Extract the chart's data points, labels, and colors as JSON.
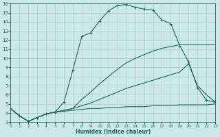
{
  "bg_color": "#cce8e8",
  "grid_color": "#aacccc",
  "line_color": "#1a6b5a",
  "xlabel": "Humidex (Indice chaleur)",
  "xlim": [
    0,
    23
  ],
  "ylim": [
    3,
    16
  ],
  "xticks": [
    0,
    1,
    2,
    3,
    4,
    5,
    6,
    7,
    8,
    9,
    10,
    11,
    12,
    13,
    14,
    15,
    16,
    17,
    18,
    19,
    20,
    21,
    22,
    23
  ],
  "yticks": [
    3,
    4,
    5,
    6,
    7,
    8,
    9,
    10,
    11,
    12,
    13,
    14,
    15,
    16
  ],
  "curve1_x": [
    0,
    1,
    2,
    3,
    4,
    5,
    6,
    7,
    8,
    9,
    10,
    11,
    12,
    13,
    14,
    15,
    16,
    17,
    18,
    19,
    20,
    21,
    22,
    23
  ],
  "curve1_y": [
    4.5,
    3.7,
    3.1,
    3.5,
    3.9,
    4.1,
    5.2,
    8.7,
    12.4,
    12.8,
    14.1,
    15.2,
    15.8,
    15.9,
    15.6,
    15.4,
    15.3,
    14.2,
    13.8,
    11.4,
    9.6,
    6.8,
    5.4,
    5.2
  ],
  "curve2_x": [
    0,
    1,
    2,
    3,
    4,
    5,
    6,
    7,
    8,
    9,
    10,
    11,
    12,
    13,
    14,
    15,
    16,
    17,
    18,
    19,
    20,
    21,
    22,
    23
  ],
  "curve2_y": [
    4.5,
    3.7,
    3.1,
    3.5,
    3.9,
    4.1,
    4.3,
    4.5,
    5.5,
    6.3,
    7.2,
    8.0,
    8.8,
    9.5,
    10.0,
    10.4,
    10.8,
    11.1,
    11.3,
    11.5,
    11.5,
    11.5,
    11.5,
    11.5
  ],
  "curve3_x": [
    0,
    1,
    2,
    3,
    4,
    5,
    6,
    7,
    8,
    9,
    10,
    11,
    12,
    13,
    14,
    15,
    16,
    17,
    18,
    19,
    20,
    21,
    22,
    23
  ],
  "curve3_y": [
    4.5,
    3.7,
    3.1,
    3.5,
    3.9,
    4.1,
    4.3,
    4.5,
    4.8,
    5.1,
    5.5,
    5.9,
    6.3,
    6.7,
    7.0,
    7.3,
    7.6,
    7.9,
    8.2,
    8.5,
    9.4,
    7.0,
    6.0,
    5.2
  ],
  "curve4_x": [
    0,
    1,
    2,
    3,
    4,
    5,
    6,
    7,
    8,
    9,
    10,
    11,
    12,
    13,
    14,
    15,
    16,
    17,
    18,
    19,
    20,
    21,
    22,
    23
  ],
  "curve4_y": [
    4.5,
    3.7,
    3.1,
    3.5,
    3.9,
    4.1,
    4.2,
    4.3,
    4.4,
    4.5,
    4.5,
    4.6,
    4.6,
    4.7,
    4.7,
    4.7,
    4.8,
    4.8,
    4.8,
    4.9,
    4.9,
    4.9,
    4.9,
    5.0
  ],
  "figsize": [
    3.2,
    2.0
  ],
  "dpi": 100
}
